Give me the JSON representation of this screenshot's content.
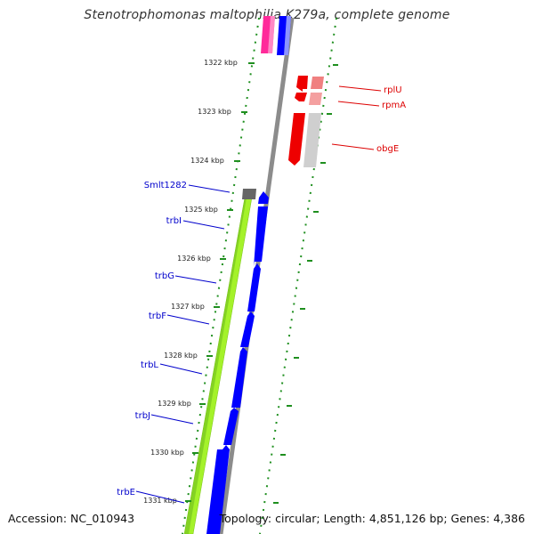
{
  "map": {
    "title": "Stenotrophomonas maltophilia K279a, complete genome",
    "footer": {
      "accession": "Accession: NC_010943",
      "summary": "Topology: circular; Length: 4,851,126 bp; Genes: 4,386"
    },
    "kbp_ticks": [
      {
        "label": "1322 kbp",
        "kbp": 1322
      },
      {
        "label": "1323 kbp",
        "kbp": 1323
      },
      {
        "label": "1324 kbp",
        "kbp": 1324
      },
      {
        "label": "1325 kbp",
        "kbp": 1325
      },
      {
        "label": "1326 kbp",
        "kbp": 1326
      },
      {
        "label": "1327 kbp",
        "kbp": 1327
      },
      {
        "label": "1328 kbp",
        "kbp": 1328
      },
      {
        "label": "1329 kbp",
        "kbp": 1329
      },
      {
        "label": "1330 kbp",
        "kbp": 1330
      },
      {
        "label": "1331 kbp",
        "kbp": 1331
      }
    ],
    "gene_labels_left": [
      "Smlt1282",
      "trbI",
      "trbG",
      "trbF",
      "trbL",
      "trbJ",
      "trbE"
    ],
    "gene_labels_right": [
      "rplU",
      "rpmA",
      "obgE"
    ],
    "colors": {
      "left_label": "#0000cc",
      "right_label": "#dd0000",
      "cds_blue": "#0000ff",
      "cds_red": "#ee0000",
      "cds_pink": "#ff2a9a",
      "lime_band": "#a4f22a",
      "backbone": "#8c8c8c",
      "tick_green": "#1f8f1f"
    }
  }
}
